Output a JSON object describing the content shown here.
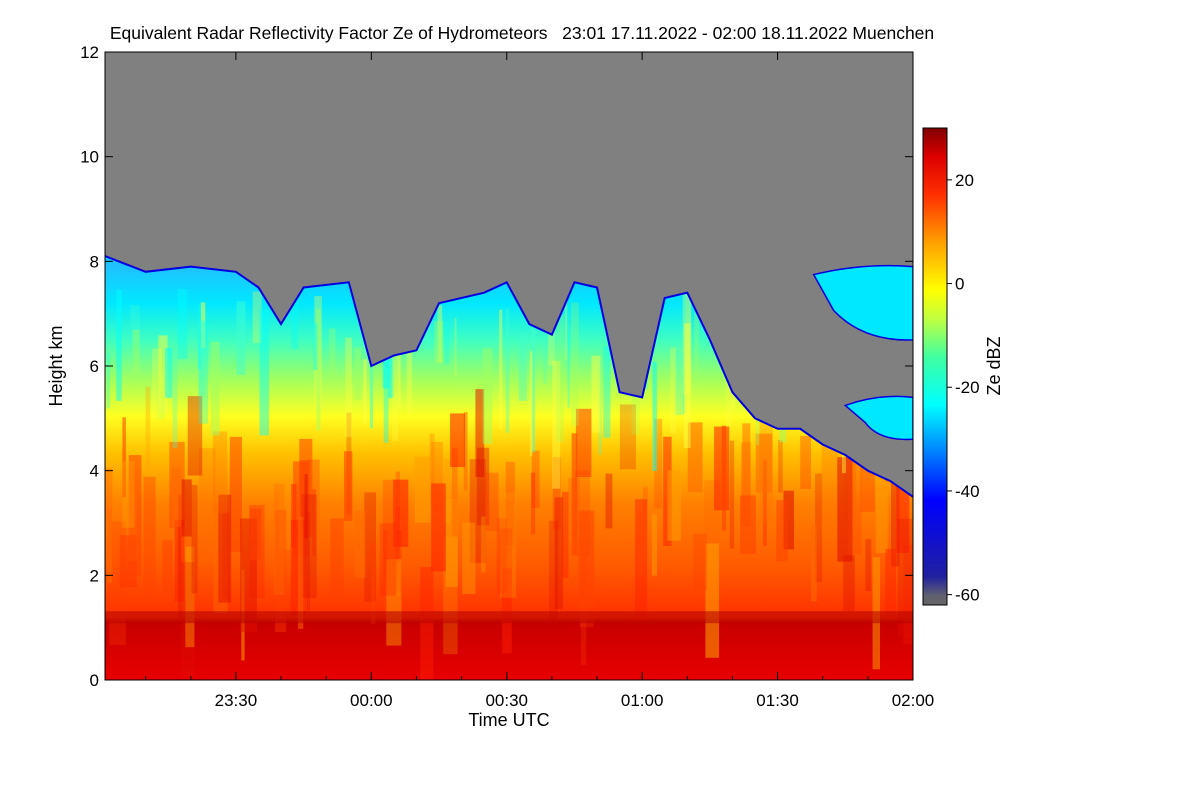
{
  "chart_data": {
    "type": "heatmap",
    "title": "Equivalent Radar Reflectivity Factor Ze of Hydrometeors   23:01 17.11.2022 - 02:00 18.11.2022 Muenchen",
    "xlabel": "Time UTC",
    "ylabel": "Height km",
    "x_range": [
      "23:01",
      "02:00"
    ],
    "x_ticks": [
      "23:30",
      "00:00",
      "00:30",
      "01:00",
      "01:30",
      "02:00"
    ],
    "ylim": [
      0,
      12
    ],
    "y_ticks": [
      0,
      2,
      4,
      6,
      8,
      10,
      12
    ],
    "colorbar": {
      "label": "Ze dBZ",
      "range": [
        -62,
        30
      ],
      "ticks": [
        -60,
        -40,
        -20,
        0,
        20
      ]
    },
    "no_signal_color": "#808080",
    "cloud_top_km": [
      {
        "t": "23:01",
        "h": 8.1
      },
      {
        "t": "23:10",
        "h": 7.8
      },
      {
        "t": "23:20",
        "h": 7.9
      },
      {
        "t": "23:30",
        "h": 7.8
      },
      {
        "t": "23:35",
        "h": 7.5
      },
      {
        "t": "23:40",
        "h": 6.8
      },
      {
        "t": "23:45",
        "h": 7.5
      },
      {
        "t": "23:55",
        "h": 7.6
      },
      {
        "t": "00:00",
        "h": 6.0
      },
      {
        "t": "00:05",
        "h": 6.2
      },
      {
        "t": "00:10",
        "h": 6.3
      },
      {
        "t": "00:15",
        "h": 7.2
      },
      {
        "t": "00:25",
        "h": 7.4
      },
      {
        "t": "00:30",
        "h": 7.6
      },
      {
        "t": "00:35",
        "h": 6.8
      },
      {
        "t": "00:40",
        "h": 6.6
      },
      {
        "t": "00:45",
        "h": 7.6
      },
      {
        "t": "00:50",
        "h": 7.5
      },
      {
        "t": "00:55",
        "h": 5.5
      },
      {
        "t": "01:00",
        "h": 5.4
      },
      {
        "t": "01:05",
        "h": 7.3
      },
      {
        "t": "01:10",
        "h": 7.4
      },
      {
        "t": "01:15",
        "h": 6.5
      },
      {
        "t": "01:20",
        "h": 5.5
      },
      {
        "t": "01:25",
        "h": 5.0
      },
      {
        "t": "01:30",
        "h": 4.8
      },
      {
        "t": "01:35",
        "h": 4.8
      },
      {
        "t": "01:40",
        "h": 4.5
      },
      {
        "t": "01:45",
        "h": 4.3
      },
      {
        "t": "01:50",
        "h": 4.0
      },
      {
        "t": "01:55",
        "h": 3.8
      },
      {
        "t": "02:00",
        "h": 3.5
      }
    ],
    "melting_layer_km": 1.2,
    "upper_echo_km": [
      {
        "t_start": "01:38",
        "t_end": "02:00",
        "h_bottom": 6.5,
        "h_top": 7.9
      },
      {
        "t_start": "01:45",
        "t_end": "02:00",
        "h_bottom": 4.6,
        "h_top": 5.4
      }
    ]
  }
}
